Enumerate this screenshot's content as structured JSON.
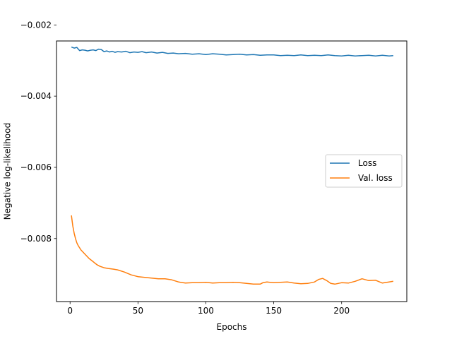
{
  "chart_data": {
    "type": "line",
    "title": "",
    "xlabel": "Epochs",
    "ylabel": "Negative log-likelihood",
    "xlim": [
      -10,
      248
    ],
    "ylim": [
      -0.00977,
      -0.00245
    ],
    "xticks": [
      0,
      50,
      100,
      150,
      200
    ],
    "xtick_labels": [
      "0",
      "50",
      "100",
      "150",
      "200"
    ],
    "yticks": [
      -0.002,
      -0.004,
      -0.006,
      -0.008
    ],
    "ytick_labels": [
      "−0.002",
      "−0.004",
      "−0.006",
      "−0.008"
    ],
    "grid": false,
    "legend_position": "center-right",
    "series": [
      {
        "name": "Loss",
        "color": "#1f77b4",
        "x": [
          1,
          3,
          5,
          7,
          9,
          11,
          13,
          15,
          17,
          19,
          21,
          23,
          25,
          27,
          29,
          31,
          33,
          35,
          38,
          41,
          44,
          47,
          50,
          53,
          56,
          60,
          64,
          68,
          72,
          76,
          80,
          85,
          90,
          95,
          100,
          105,
          110,
          115,
          120,
          125,
          130,
          135,
          140,
          145,
          150,
          155,
          160,
          165,
          170,
          175,
          180,
          185,
          190,
          195,
          200,
          205,
          210,
          215,
          220,
          225,
          230,
          235,
          238
        ],
        "y": [
          -0.00262,
          -0.00265,
          -0.00263,
          -0.00272,
          -0.0027,
          -0.00271,
          -0.00273,
          -0.00271,
          -0.0027,
          -0.00272,
          -0.00268,
          -0.00269,
          -0.00275,
          -0.00273,
          -0.00276,
          -0.00274,
          -0.00277,
          -0.00275,
          -0.00276,
          -0.00274,
          -0.00278,
          -0.00276,
          -0.00277,
          -0.00275,
          -0.00278,
          -0.00276,
          -0.00279,
          -0.00277,
          -0.0028,
          -0.00279,
          -0.00281,
          -0.0028,
          -0.00282,
          -0.00281,
          -0.00283,
          -0.00281,
          -0.00282,
          -0.00284,
          -0.00283,
          -0.00282,
          -0.00284,
          -0.00283,
          -0.00285,
          -0.00284,
          -0.00284,
          -0.00286,
          -0.00285,
          -0.00286,
          -0.00284,
          -0.00286,
          -0.00285,
          -0.00286,
          -0.00284,
          -0.00286,
          -0.00287,
          -0.00285,
          -0.00287,
          -0.00286,
          -0.00285,
          -0.00287,
          -0.00285,
          -0.00287,
          -0.00286
        ]
      },
      {
        "name": "Val. loss",
        "color": "#ff7f0e",
        "x": [
          1,
          2,
          3,
          4,
          5,
          6,
          7,
          8,
          9,
          10,
          12,
          14,
          16,
          18,
          20,
          22,
          25,
          28,
          32,
          35,
          40,
          45,
          50,
          55,
          60,
          65,
          70,
          75,
          80,
          85,
          90,
          95,
          100,
          105,
          110,
          115,
          120,
          125,
          130,
          135,
          140,
          142,
          145,
          150,
          155,
          160,
          165,
          170,
          175,
          180,
          183,
          186,
          189,
          192,
          195,
          200,
          205,
          210,
          215,
          220,
          225,
          230,
          235,
          238
        ],
        "y": [
          -0.00735,
          -0.00765,
          -0.00785,
          -0.008,
          -0.00812,
          -0.0082,
          -0.00826,
          -0.00832,
          -0.00836,
          -0.0084,
          -0.00848,
          -0.00856,
          -0.00862,
          -0.00868,
          -0.00874,
          -0.00878,
          -0.00882,
          -0.00884,
          -0.00886,
          -0.00888,
          -0.00894,
          -0.00902,
          -0.00907,
          -0.00909,
          -0.00911,
          -0.00913,
          -0.00913,
          -0.00916,
          -0.00922,
          -0.00925,
          -0.00924,
          -0.00924,
          -0.00923,
          -0.00925,
          -0.00924,
          -0.00924,
          -0.00923,
          -0.00924,
          -0.00926,
          -0.00928,
          -0.00928,
          -0.00924,
          -0.00922,
          -0.00924,
          -0.00923,
          -0.00922,
          -0.00925,
          -0.00927,
          -0.00926,
          -0.00922,
          -0.00915,
          -0.00912,
          -0.00918,
          -0.00926,
          -0.00928,
          -0.00924,
          -0.00925,
          -0.0092,
          -0.00913,
          -0.00918,
          -0.00917,
          -0.00925,
          -0.00922,
          -0.0092
        ]
      }
    ]
  }
}
